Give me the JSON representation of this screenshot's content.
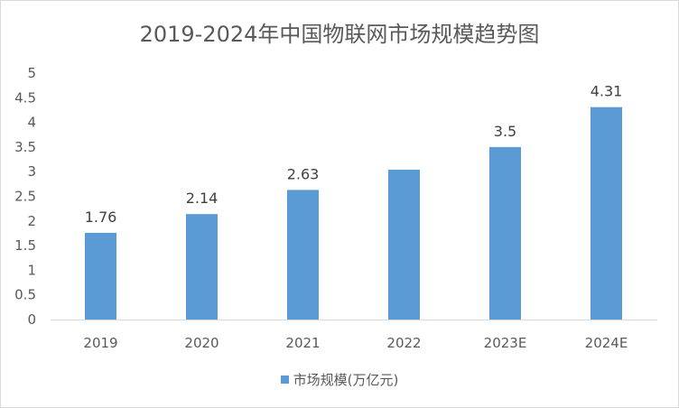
{
  "chart_data": {
    "type": "bar",
    "title": "2019-2024年中国物联网市场规模趋势图",
    "categories": [
      "2019",
      "2020",
      "2021",
      "2022",
      "2023E",
      "2024E"
    ],
    "series": [
      {
        "name": "市场规模(万亿元)",
        "values": [
          1.76,
          2.14,
          2.63,
          3.04,
          3.5,
          4.31
        ],
        "color": "#5b9bd5"
      }
    ],
    "data_labels": [
      "1.76",
      "2.14",
      "2.63",
      "",
      "3.5",
      "4.31"
    ],
    "ylim": [
      0,
      5
    ],
    "yticks": [
      "0",
      "0.5",
      "1",
      "1.5",
      "2",
      "2.5",
      "3",
      "3.5",
      "4",
      "4.5",
      "5"
    ],
    "grid": false,
    "legend": "bottom",
    "xlabel": "",
    "ylabel": ""
  }
}
